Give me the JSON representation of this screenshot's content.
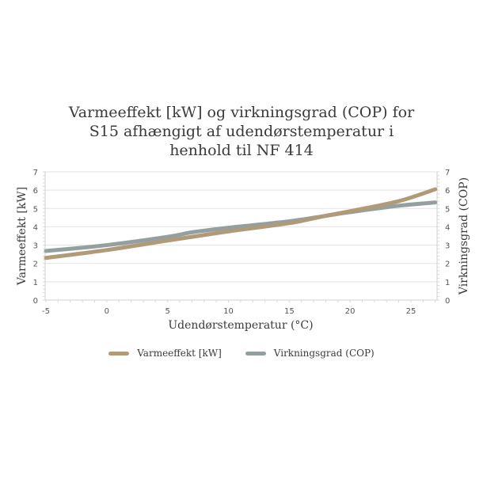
{
  "chart_data": {
    "type": "line",
    "title": "Varmeeffekt [kW] og virkningsgrad (COP) for S15 afhængigt af udendørstemperatur i henhold til NF 414",
    "title_lines": [
      "Varmeeffekt [kW] og virkningsgrad (COP) for",
      "S15 afhængigt af udendørstemperatur i",
      "henhold til NF 414"
    ],
    "xlabel": "Udendørstemperatur (°C)",
    "ylabel": "Varmeeffekt [kW]",
    "y2label": "Virkningsgrad (COP)",
    "xlim": [
      -5,
      27
    ],
    "ylim": [
      0,
      7
    ],
    "y2lim": [
      0,
      7
    ],
    "x_ticks": [
      -5,
      0,
      5,
      10,
      15,
      20,
      25
    ],
    "y_ticks": [
      0,
      1,
      2,
      3,
      4,
      5,
      6,
      7
    ],
    "y2_ticks": [
      0,
      1,
      2,
      3,
      4,
      5,
      6,
      7
    ],
    "grid": true,
    "legend_position": "bottom",
    "x": [
      -5,
      0,
      5,
      7,
      10,
      15,
      18,
      20,
      24,
      27
    ],
    "series": [
      {
        "name": "Varmeeffekt [kW]",
        "axis": "left",
        "color": "#b09a78",
        "values": [
          2.3,
          2.73,
          3.25,
          3.45,
          3.75,
          4.2,
          4.6,
          4.85,
          5.4,
          6.05
        ]
      },
      {
        "name": "Virkningsgrad (COP)",
        "axis": "right",
        "color": "#94a0a0",
        "values": [
          2.68,
          3.0,
          3.45,
          3.7,
          3.95,
          4.3,
          4.6,
          4.8,
          5.15,
          5.33
        ]
      }
    ]
  },
  "legend": {
    "items": [
      {
        "label": "Varmeeffekt [kW]",
        "color": "#b09a78"
      },
      {
        "label": "Virkningsgrad (COP)",
        "color": "#94a0a0"
      }
    ]
  }
}
